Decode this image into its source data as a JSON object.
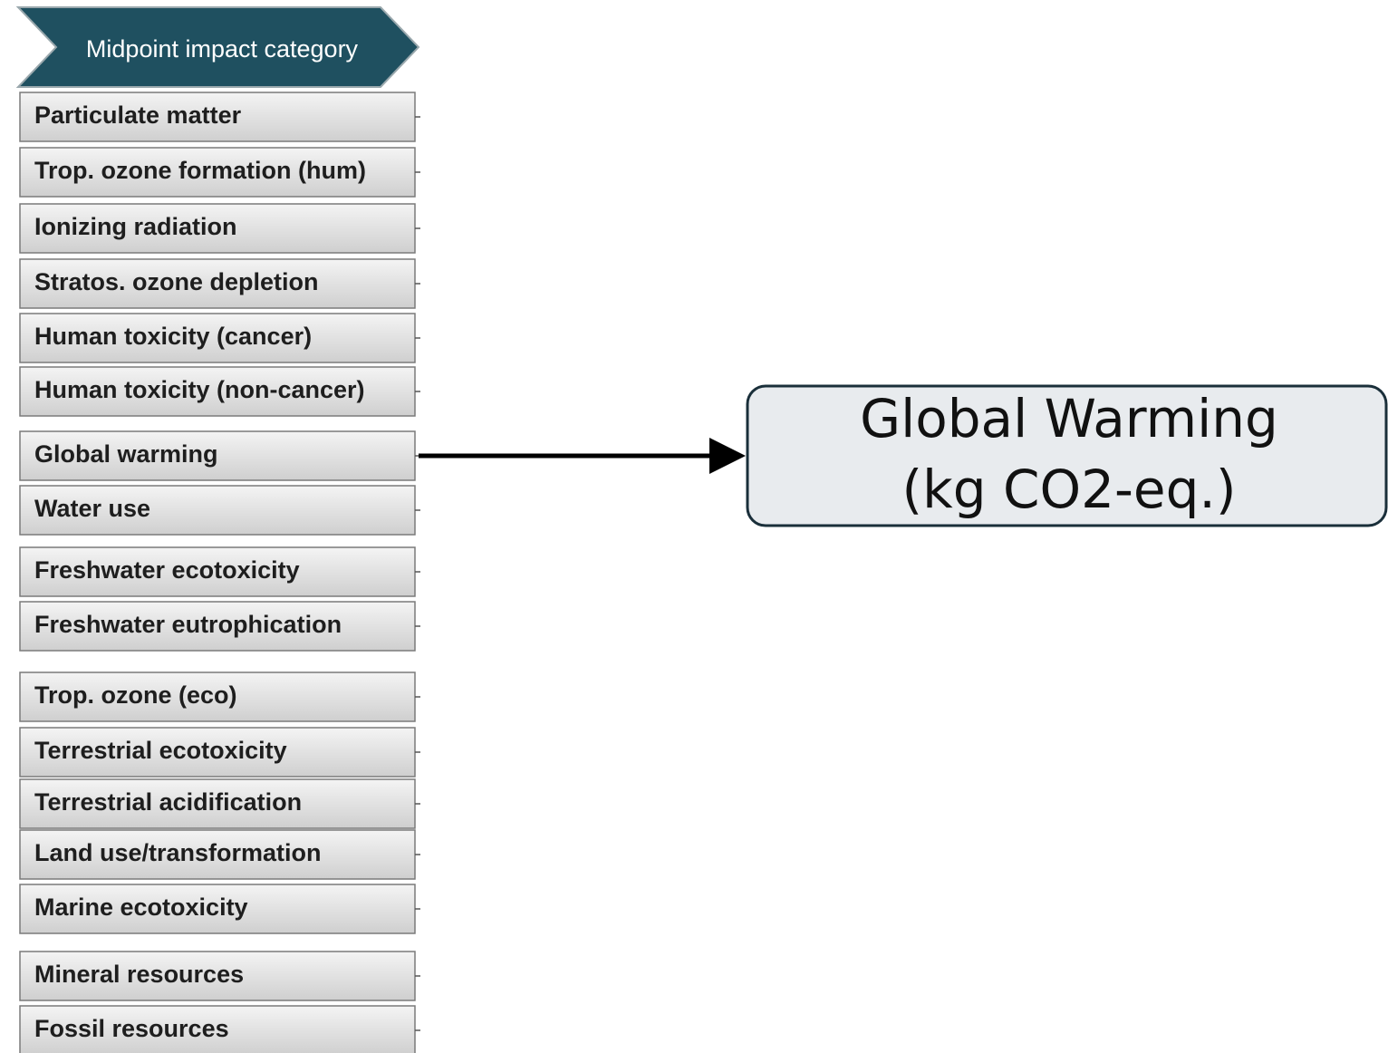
{
  "header": {
    "title": "Midpoint impact category"
  },
  "categories": [
    "Particulate matter",
    "Trop. ozone formation (hum)",
    "Ionizing radiation",
    "Stratos. ozone depletion",
    "Human toxicity (cancer)",
    "Human toxicity (non-cancer)",
    "Global warming",
    "Water use",
    "Freshwater ecotoxicity",
    "Freshwater eutrophication",
    "Trop. ozone (eco)",
    "Terrestrial ecotoxicity",
    "Terrestrial acidification",
    "Land use/transformation",
    "Marine ecotoxicity",
    "Mineral resources",
    "Fossil resources"
  ],
  "target": {
    "lines": [
      "Global Warming",
      "(kg CO2-eq.)"
    ]
  }
}
